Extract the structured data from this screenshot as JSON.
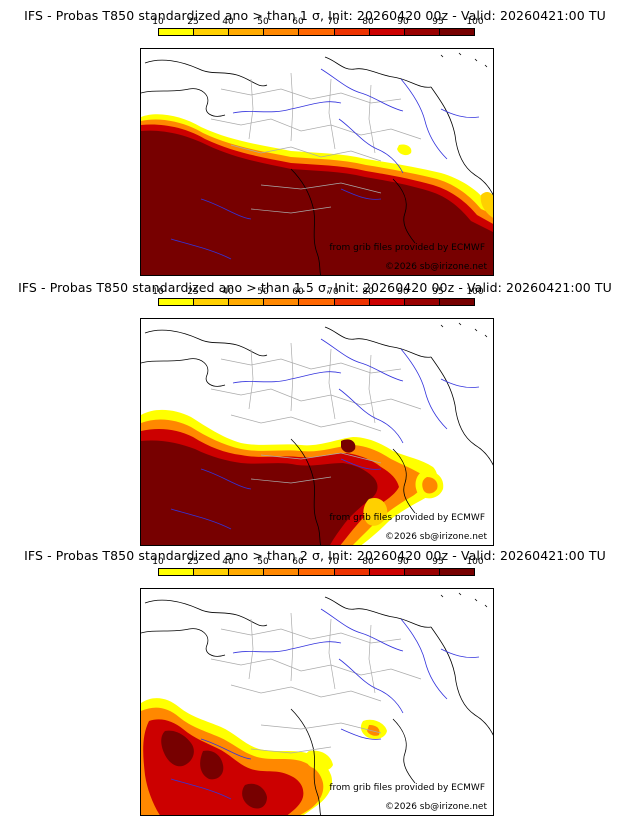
{
  "colorbar": {
    "ticks": [
      "10",
      "25",
      "40",
      "50",
      "60",
      "70",
      "80",
      "90",
      "95",
      "100"
    ],
    "colors": [
      "#ffff00",
      "#ffd000",
      "#ffaa00",
      "#ff8800",
      "#ff6600",
      "#ee3300",
      "#cc0000",
      "#990000",
      "#770000"
    ]
  },
  "panels": [
    {
      "title": "IFS - Probas T850  standardized ano > than 1 σ, Init: 20260420 00z - Valid: 20260421:00 TU",
      "source": "from grib files provided by ECMWF",
      "copyright": "©2026 sb@irizone.net",
      "threshold_sigma": 1,
      "coverage": "extensive"
    },
    {
      "title": "IFS - Probas T850  standardized ano > than 1.5 σ, Init: 20260420 00z - Valid: 20260421:00 TU",
      "source": "from grib files provided by ECMWF",
      "copyright": "©2026 sb@irizone.net",
      "threshold_sigma": 1.5,
      "coverage": "moderate"
    },
    {
      "title": "IFS - Probas T850  standardized ano > than 2 σ, Init: 20260420 00z - Valid: 20260421:00 TU",
      "source": "from grib files provided by ECMWF",
      "copyright": "©2026 sb@irizone.net",
      "threshold_sigma": 2,
      "coverage": "limited"
    }
  ]
}
